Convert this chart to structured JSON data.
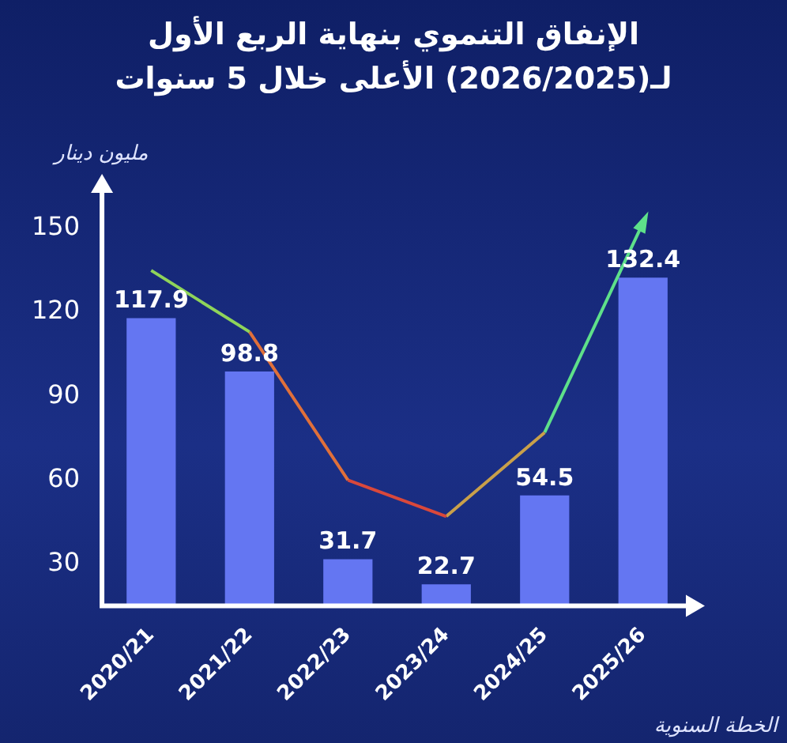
{
  "chart_data": {
    "type": "bar",
    "title": "الإنفاق التنموي بنهاية الربع الأول لـ(2026/2025) الأعلى خلال 5 سنوات",
    "xlabel": "الخطة السنوية",
    "ylabel": "مليون دينار",
    "categories": [
      "2020/21",
      "2021/22",
      "2022/23",
      "2023/24",
      "2024/25",
      "2025/26"
    ],
    "series": [
      {
        "color": "#6476f2",
        "values": [
          117.9,
          98.8,
          31.7,
          22.7,
          54.5,
          132.4
        ],
        "value_labels": [
          "117.9",
          "98.8",
          "31.7",
          "22.7",
          "54.5",
          "132.4"
        ]
      },
      {
        "type": "line",
        "color": "#8fd45a",
        "values": [
          135,
          113,
          null,
          null,
          null,
          null
        ]
      },
      {
        "type": "line",
        "color": "#e0703a",
        "values": [
          null,
          113,
          60,
          null,
          null,
          null
        ]
      },
      {
        "type": "line",
        "color": "#d9483b",
        "values": [
          null,
          null,
          60,
          47,
          null,
          null
        ]
      },
      {
        "type": "line",
        "color": "#c9a04a",
        "values": [
          null,
          null,
          null,
          47,
          77,
          null
        ]
      },
      {
        "type": "line",
        "color": "#5ee08a",
        "values": [
          null,
          null,
          null,
          null,
          77,
          152
        ]
      }
    ],
    "ylim": [
      15,
      165
    ],
    "yticks": [
      30,
      60,
      90,
      120,
      150
    ],
    "grid": false,
    "legend": false
  }
}
